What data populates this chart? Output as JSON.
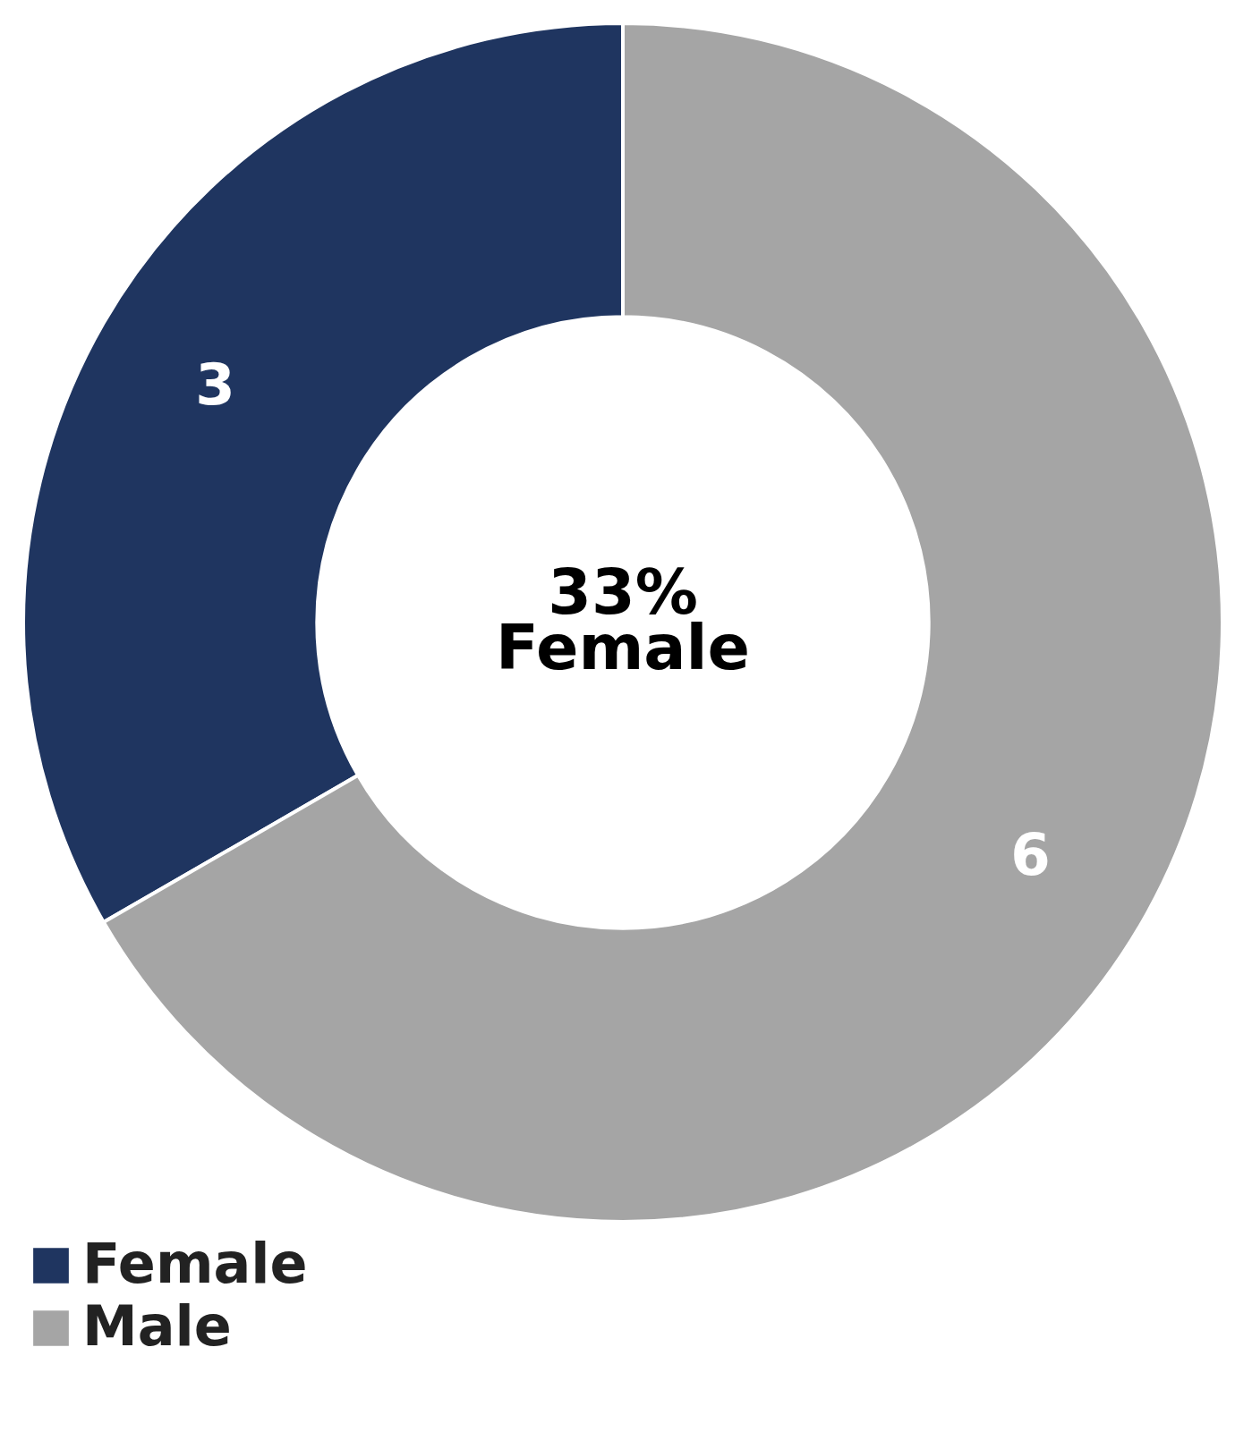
{
  "chart_data": {
    "type": "donut",
    "categories": [
      "Female",
      "Male"
    ],
    "values": [
      3,
      6
    ],
    "colors": [
      "#1f3560",
      "#a5a5a5"
    ],
    "data_labels": true,
    "legend": "bottom",
    "annotations": [
      "33%",
      "Female"
    ]
  }
}
